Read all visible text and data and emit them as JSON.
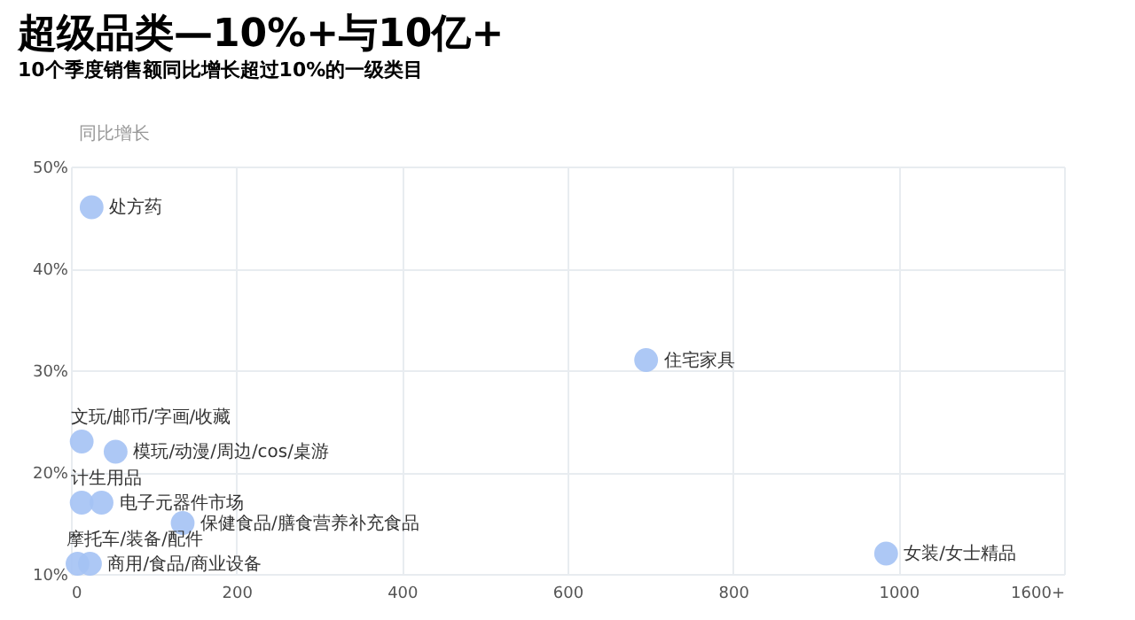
{
  "chart_data": {
    "type": "scatter",
    "title": "超级品类—10%+与10亿+",
    "subtitle": "10个季度销售额同比增长超过10%的一级类目",
    "ylabel": "同比增长",
    "x": [
      25,
      13,
      54,
      13,
      37,
      135,
      8,
      23,
      695,
      985
    ],
    "series": [
      {
        "color": "#a4c2f4",
        "values": [
          46,
          23,
          22,
          17,
          17,
          15,
          11,
          11,
          31,
          12
        ]
      }
    ],
    "annotations": [
      {
        "text": "处方药",
        "x": 25,
        "y": 46
      },
      {
        "text": "文玩/邮币/字画/收藏",
        "x": 13,
        "y": 23
      },
      {
        "text": "模玩/动漫/周边/cos/桌游",
        "x": 54,
        "y": 22
      },
      {
        "text": "计生用品",
        "x": 13,
        "y": 17
      },
      {
        "text": "电子元器件市场",
        "x": 37,
        "y": 17
      },
      {
        "text": "保健食品/膳食营养补充食品",
        "x": 135,
        "y": 15
      },
      {
        "text": "摩托车/装备/配件",
        "x": 8,
        "y": 11
      },
      {
        "text": "商用/食品/商业设备",
        "x": 23,
        "y": 11
      },
      {
        "text": "住宅家具",
        "x": 695,
        "y": 31
      },
      {
        "text": "女装/女士精品",
        "x": 985,
        "y": 12
      }
    ],
    "xlim": [
      0,
      1200
    ],
    "xticks": [
      0,
      200,
      400,
      600,
      800,
      1000,
      {
        "value": 1200,
        "label": "1600+"
      }
    ],
    "ylim": [
      10,
      50
    ],
    "yticks": [
      {
        "value": 10,
        "label": "10%"
      },
      {
        "value": 20,
        "label": "20%"
      },
      {
        "value": 30,
        "label": "30%"
      },
      {
        "value": 40,
        "label": "40%"
      },
      {
        "value": 50,
        "label": "50%"
      }
    ],
    "grid": true,
    "marker": "circle"
  }
}
